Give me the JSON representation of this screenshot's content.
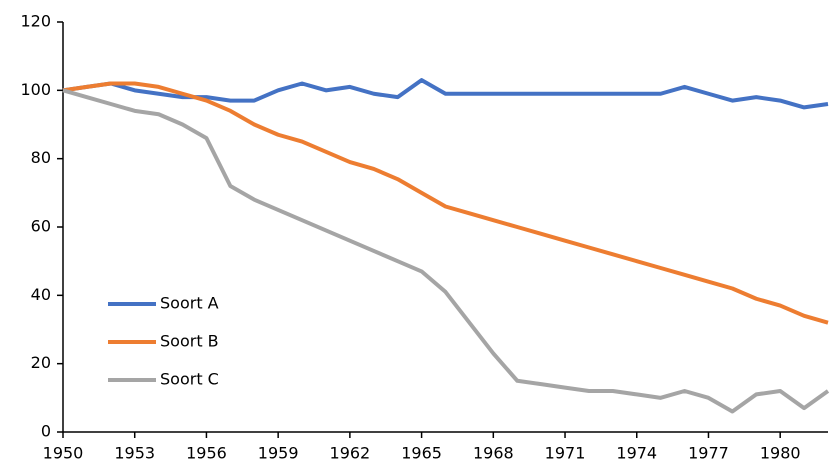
{
  "chart_data": {
    "type": "line",
    "x": [
      1950,
      1951,
      1952,
      1953,
      1954,
      1955,
      1956,
      1957,
      1958,
      1959,
      1960,
      1961,
      1962,
      1963,
      1964,
      1965,
      1966,
      1967,
      1968,
      1969,
      1970,
      1971,
      1972,
      1973,
      1974,
      1975,
      1976,
      1977,
      1978,
      1979,
      1980,
      1981,
      1982
    ],
    "series": [
      {
        "name": "Soort A",
        "color": "#4472c4",
        "values": [
          100,
          101,
          102,
          100,
          99,
          98,
          98,
          97,
          97,
          100,
          102,
          100,
          101,
          99,
          98,
          103,
          99,
          99,
          99,
          99,
          99,
          99,
          99,
          99,
          99,
          99,
          101,
          99,
          97,
          98,
          97,
          95,
          96
        ]
      },
      {
        "name": "Soort B",
        "color": "#ed7d31",
        "values": [
          100,
          101,
          102,
          102,
          101,
          99,
          97,
          94,
          90,
          87,
          85,
          82,
          79,
          77,
          74,
          70,
          66,
          64,
          62,
          60,
          58,
          56,
          54,
          52,
          50,
          48,
          46,
          44,
          42,
          39,
          37,
          34,
          32
        ]
      },
      {
        "name": "Soort C",
        "color": "#a5a5a5",
        "values": [
          100,
          98,
          96,
          94,
          93,
          90,
          86,
          72,
          68,
          65,
          62,
          59,
          56,
          53,
          50,
          47,
          41,
          32,
          23,
          15,
          14,
          13,
          12,
          12,
          11,
          10,
          12,
          10,
          6,
          11,
          12,
          7,
          12
        ]
      }
    ],
    "xlim": [
      1950,
      1982
    ],
    "xticks": [
      1950,
      1953,
      1956,
      1959,
      1962,
      1965,
      1968,
      1971,
      1974,
      1977,
      1980
    ],
    "ylim": [
      0,
      120
    ],
    "yticks": [
      0,
      20,
      40,
      60,
      80,
      100,
      120
    ],
    "grid": false,
    "legend": "lower left"
  }
}
